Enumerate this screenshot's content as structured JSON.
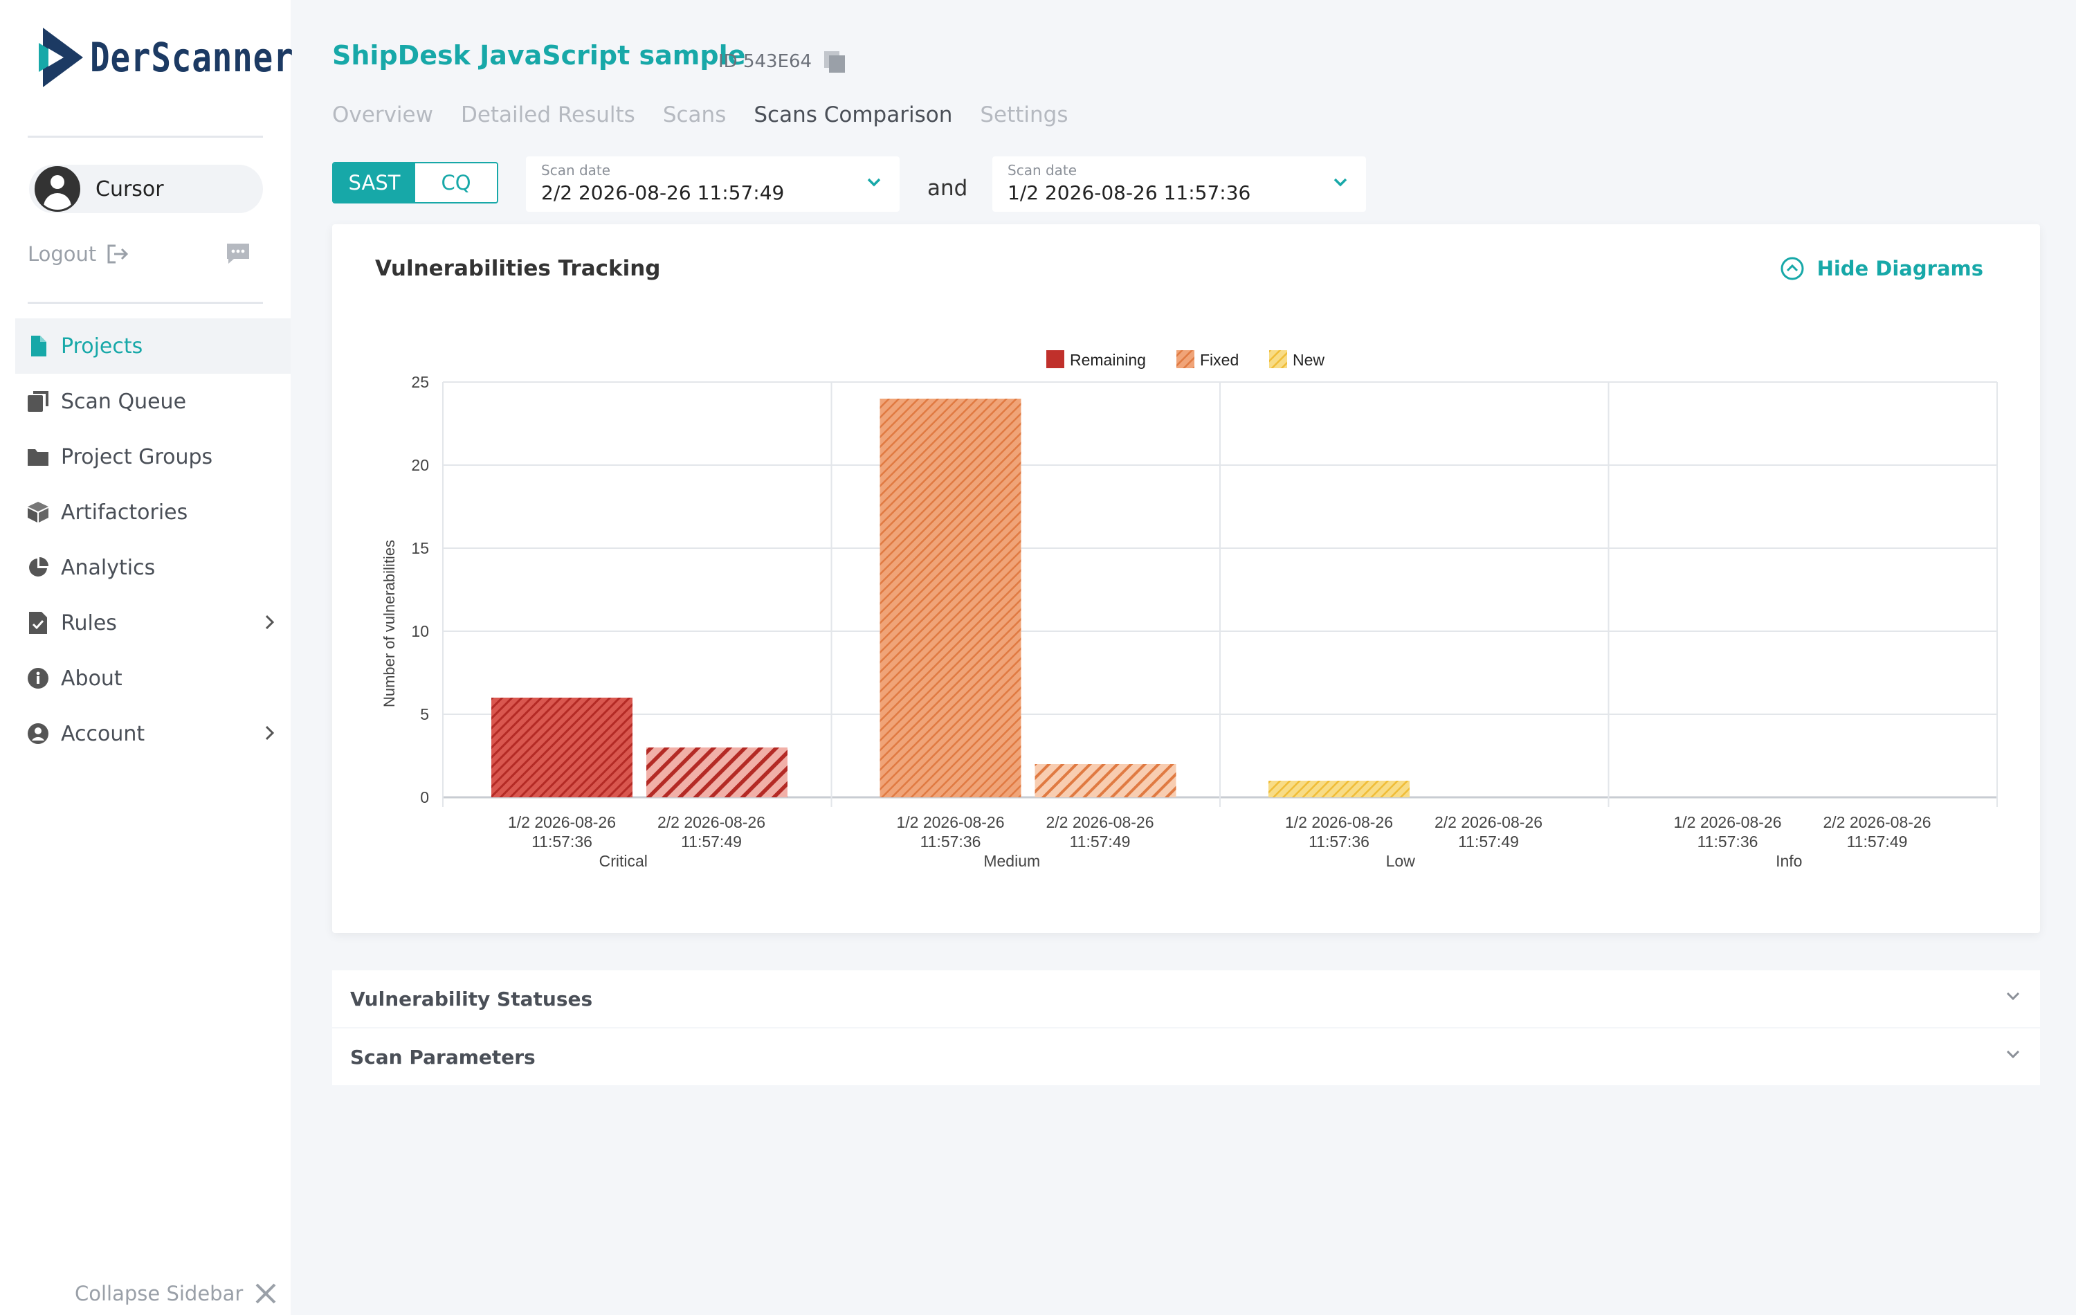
{
  "brand": {
    "logo_text": "DerScanner"
  },
  "user": {
    "name": "Cursor",
    "logout_label": "Logout"
  },
  "nav": {
    "items": [
      {
        "label": "Projects",
        "icon": "file-icon",
        "active": true
      },
      {
        "label": "Scan Queue",
        "icon": "queue-icon"
      },
      {
        "label": "Project Groups",
        "icon": "folder-icon"
      },
      {
        "label": "Artifactories",
        "icon": "cube-icon"
      },
      {
        "label": "Analytics",
        "icon": "pie-icon"
      },
      {
        "label": "Rules",
        "icon": "rules-icon",
        "has_children": true
      },
      {
        "label": "About",
        "icon": "info-icon"
      },
      {
        "label": "Account",
        "icon": "account-icon",
        "has_children": true
      }
    ],
    "collapse_label": "Collapse Sidebar"
  },
  "header": {
    "title": "ShipDesk JavaScript sample",
    "id_label": "ID 543E64",
    "tabs": [
      "Overview",
      "Detailed Results",
      "Scans",
      "Scans Comparison",
      "Settings"
    ],
    "active_tab": "Scans Comparison"
  },
  "filters": {
    "toggle": {
      "on": "SAST",
      "off": "CQ"
    },
    "scan_a": {
      "label": "Scan date",
      "value": "2/2 2026-08-26 11:57:49"
    },
    "connector": "and",
    "scan_b": {
      "label": "Scan date",
      "value": "1/2 2026-08-26 11:57:36"
    }
  },
  "panel": {
    "title": "Vulnerabilities Tracking",
    "hide_label": "Hide Diagrams"
  },
  "accordions": [
    {
      "label": "Vulnerability Statuses"
    },
    {
      "label": "Scan Parameters"
    }
  ],
  "colors": {
    "accent": "#17a8a8",
    "remaining": "#c0302b",
    "fixed": "#e8834e",
    "new": "#f3c545"
  },
  "chart_data": {
    "type": "bar",
    "ylabel": "Number of vulnerabilities",
    "ylim": [
      0,
      25
    ],
    "yticks": [
      "0",
      "5",
      "10",
      "15",
      "20",
      "25"
    ],
    "legend": {
      "placement": "top-center",
      "entries": [
        "Remaining",
        "Fixed",
        "New"
      ]
    },
    "groups": [
      {
        "name": "Critical",
        "bars": [
          {
            "label1": "1/2 2026-08-26",
            "label2": "11:57:36",
            "series": "Remaining",
            "value": 6
          },
          {
            "label1": "2/2 2026-08-26",
            "label2": "11:57:49",
            "series": "Remaining",
            "value": 3
          }
        ]
      },
      {
        "name": "Medium",
        "bars": [
          {
            "label1": "1/2 2026-08-26",
            "label2": "11:57:36",
            "series": "Fixed",
            "value": 24
          },
          {
            "label1": "2/2 2026-08-26",
            "label2": "11:57:49",
            "series": "Fixed",
            "value": 2
          }
        ]
      },
      {
        "name": "Low",
        "bars": [
          {
            "label1": "1/2 2026-08-26",
            "label2": "11:57:36",
            "series": "New",
            "value": 1
          },
          {
            "label1": "2/2 2026-08-26",
            "label2": "11:57:49",
            "series": "New",
            "value": 0
          }
        ]
      },
      {
        "name": "Info",
        "bars": [
          {
            "label1": "1/2 2026-08-26",
            "label2": "11:57:36",
            "series": "New",
            "value": 0
          },
          {
            "label1": "2/2 2026-08-26",
            "label2": "11:57:49",
            "series": "New",
            "value": 0
          }
        ]
      }
    ]
  }
}
